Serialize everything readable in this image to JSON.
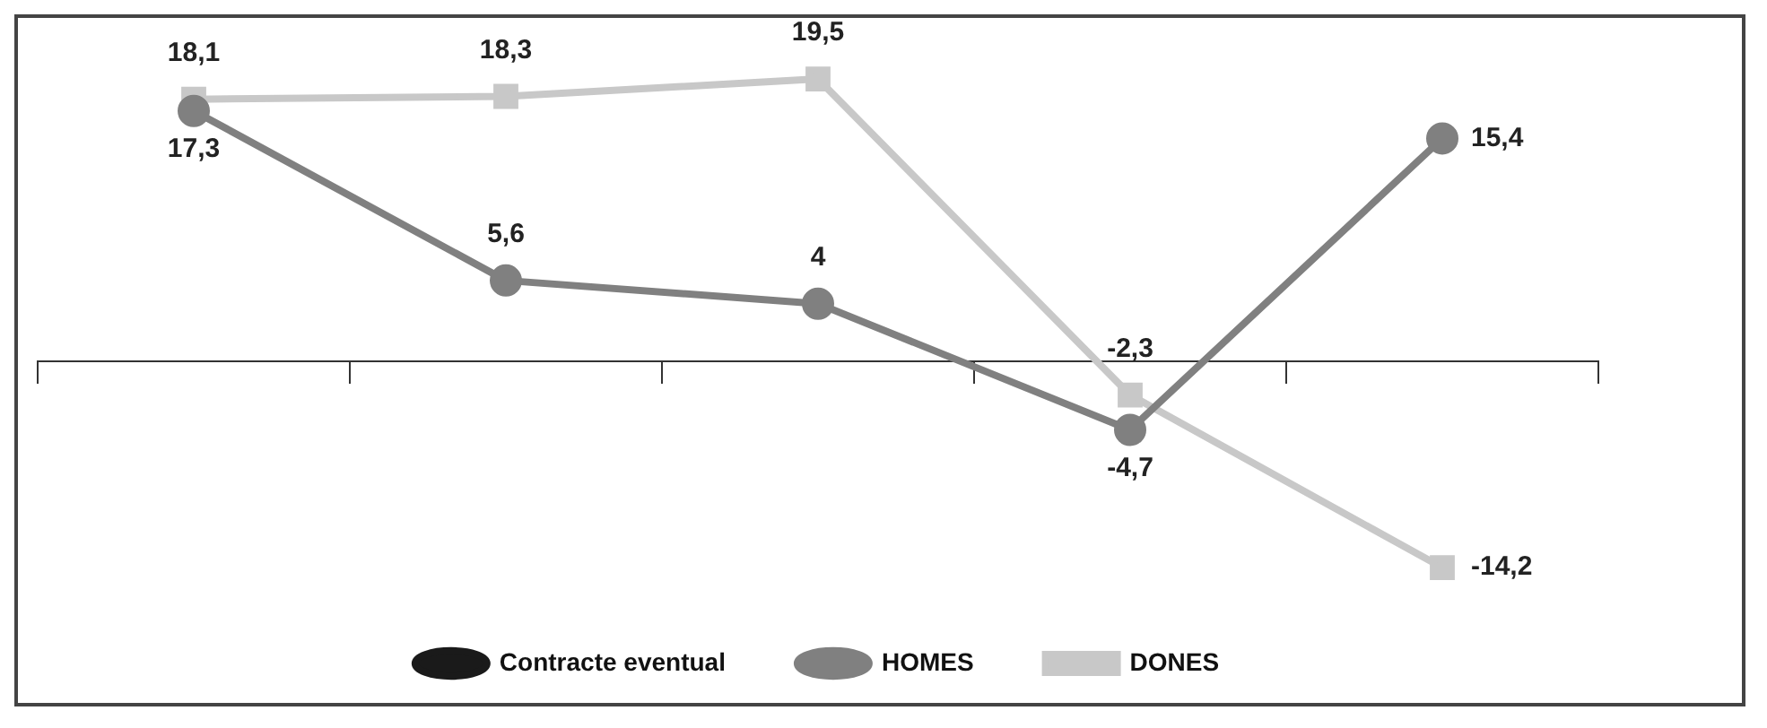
{
  "chart_data": {
    "type": "line",
    "categories": [
      null,
      null,
      null,
      null,
      null
    ],
    "series": [
      {
        "name": "Contracte eventual",
        "color": "#1a1a1a",
        "marker": "circle",
        "values": [
          null,
          null,
          null,
          null,
          null
        ]
      },
      {
        "name": "HOMES",
        "color": "#808080",
        "marker": "circle",
        "values": [
          17.3,
          5.6,
          4,
          -4.7,
          15.4
        ],
        "value_labels": [
          "17,3",
          "5,6",
          "4",
          "-4,7",
          "15,4"
        ]
      },
      {
        "name": "DONES",
        "color": "#c8c8c8",
        "marker": "square",
        "values": [
          18.1,
          18.3,
          19.5,
          -2.3,
          -14.2
        ],
        "value_labels": [
          "18,1",
          "18,3",
          "19,5",
          "-2,3",
          "-14,2"
        ]
      }
    ],
    "grid": false,
    "legend": "bottom",
    "tick_labels": false
  }
}
